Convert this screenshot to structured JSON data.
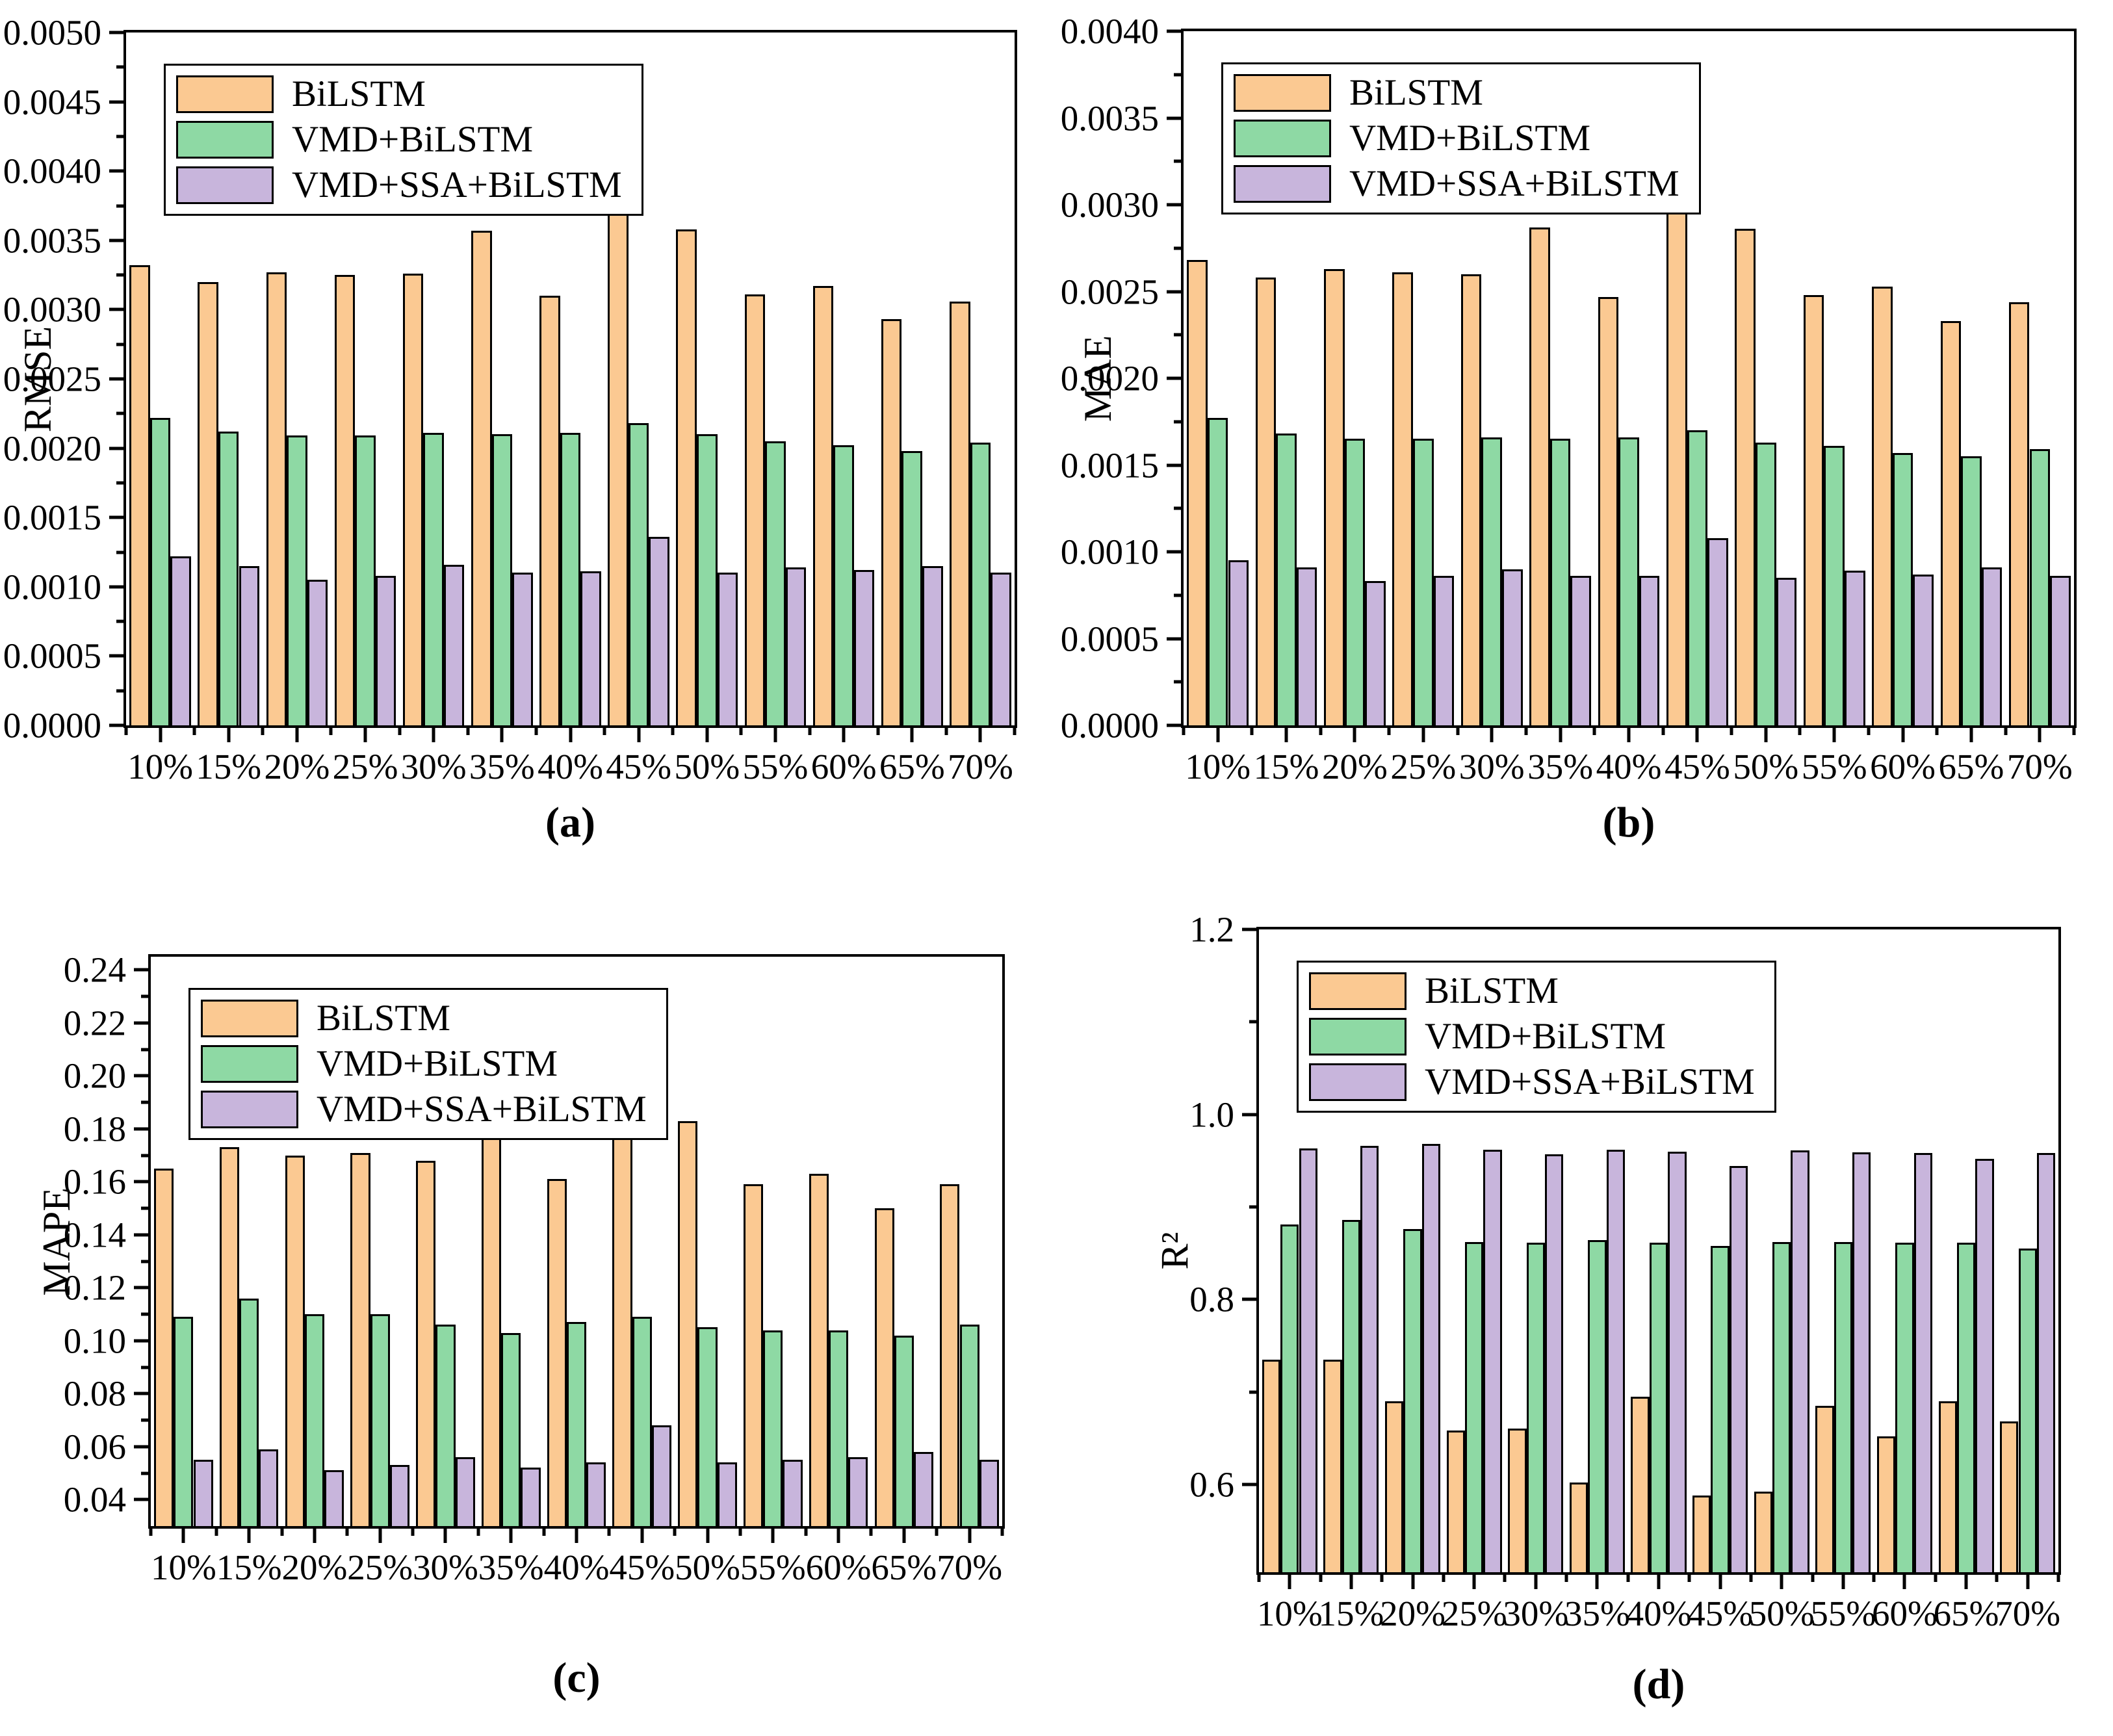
{
  "chart_data": [
    {
      "panel": "a",
      "type": "bar",
      "title": "",
      "caption": "(a)",
      "xlabel": "",
      "ylabel": "RMSE",
      "grid": false,
      "legend_position": "top-left",
      "categories": [
        "10%",
        "15%",
        "20%",
        "25%",
        "30%",
        "35%",
        "40%",
        "45%",
        "50%",
        "55%",
        "60%",
        "65%",
        "70%"
      ],
      "series": [
        {
          "name": "BiLSTM",
          "color": "#fbc992",
          "values": [
            0.00332,
            0.0032,
            0.00327,
            0.00325,
            0.00326,
            0.00357,
            0.0031,
            0.00371,
            0.00358,
            0.00311,
            0.00317,
            0.00293,
            0.00306
          ]
        },
        {
          "name": "VMD+BiLSTM",
          "color": "#8ed9a4",
          "values": [
            0.00222,
            0.00212,
            0.00209,
            0.00209,
            0.00211,
            0.0021,
            0.00211,
            0.00218,
            0.0021,
            0.00205,
            0.00202,
            0.00198,
            0.00204
          ]
        },
        {
          "name": "VMD+SSA+BiLSTM",
          "color": "#c8b5dc",
          "values": [
            0.00122,
            0.00115,
            0.00105,
            0.00108,
            0.00116,
            0.0011,
            0.00111,
            0.00136,
            0.0011,
            0.00114,
            0.00112,
            0.00115,
            0.0011
          ]
        }
      ],
      "ylim": [
        0,
        0.005
      ],
      "ylim_draw": [
        0,
        0.005
      ],
      "yticks": [
        0,
        0.0005,
        0.001,
        0.0015,
        0.002,
        0.0025,
        0.003,
        0.0035,
        0.004,
        0.0045,
        0.005
      ],
      "ytick_labels": [
        "0.0000",
        "0.0005",
        "0.0010",
        "0.0015",
        "0.0020",
        "0.0025",
        "0.0030",
        "0.0035",
        "0.0040",
        "0.0045",
        "0.0050"
      ]
    },
    {
      "panel": "b",
      "type": "bar",
      "title": "",
      "caption": "(b)",
      "xlabel": "",
      "ylabel": "MAE",
      "grid": false,
      "legend_position": "top-left",
      "categories": [
        "10%",
        "15%",
        "20%",
        "25%",
        "30%",
        "35%",
        "40%",
        "45%",
        "50%",
        "55%",
        "60%",
        "65%",
        "70%"
      ],
      "series": [
        {
          "name": "BiLSTM",
          "color": "#fbc992",
          "values": [
            0.00268,
            0.00258,
            0.00263,
            0.00261,
            0.0026,
            0.00287,
            0.00247,
            0.00297,
            0.00286,
            0.00248,
            0.00253,
            0.00233,
            0.00244
          ]
        },
        {
          "name": "VMD+BiLSTM",
          "color": "#8ed9a4",
          "values": [
            0.00177,
            0.00168,
            0.00165,
            0.00165,
            0.00166,
            0.00165,
            0.00166,
            0.0017,
            0.00163,
            0.00161,
            0.00157,
            0.00155,
            0.00159
          ]
        },
        {
          "name": "VMD+SSA+BiLSTM",
          "color": "#c8b5dc",
          "values": [
            0.00095,
            0.00091,
            0.00083,
            0.00086,
            0.0009,
            0.00086,
            0.00086,
            0.00108,
            0.00085,
            0.00089,
            0.00087,
            0.00091,
            0.00086
          ]
        }
      ],
      "ylim": [
        0,
        0.004
      ],
      "ylim_draw": [
        0,
        0.004
      ],
      "yticks": [
        0,
        0.0005,
        0.001,
        0.0015,
        0.002,
        0.0025,
        0.003,
        0.0035,
        0.004
      ],
      "ytick_labels": [
        "0.0000",
        "0.0005",
        "0.0010",
        "0.0015",
        "0.0020",
        "0.0025",
        "0.0030",
        "0.0035",
        "0.0040"
      ]
    },
    {
      "panel": "c",
      "type": "bar",
      "title": "",
      "caption": "(c)",
      "xlabel": "",
      "ylabel": "MAPE",
      "grid": false,
      "legend_position": "top-left",
      "categories": [
        "10%",
        "15%",
        "20%",
        "25%",
        "30%",
        "35%",
        "40%",
        "45%",
        "50%",
        "55%",
        "60%",
        "65%",
        "70%"
      ],
      "series": [
        {
          "name": "BiLSTM",
          "color": "#fbc992",
          "values": [
            0.165,
            0.173,
            0.17,
            0.171,
            0.168,
            0.182,
            0.161,
            0.188,
            0.183,
            0.159,
            0.163,
            0.15,
            0.159
          ]
        },
        {
          "name": "VMD+BiLSTM",
          "color": "#8ed9a4",
          "values": [
            0.109,
            0.116,
            0.11,
            0.11,
            0.106,
            0.103,
            0.107,
            0.109,
            0.105,
            0.104,
            0.104,
            0.102,
            0.106
          ]
        },
        {
          "name": "VMD+SSA+BiLSTM",
          "color": "#c8b5dc",
          "values": [
            0.055,
            0.059,
            0.051,
            0.053,
            0.056,
            0.052,
            0.054,
            0.068,
            0.054,
            0.055,
            0.056,
            0.058,
            0.055
          ]
        }
      ],
      "ylim": [
        0.04,
        0.24
      ],
      "ylim_draw": [
        0.03,
        0.245
      ],
      "yticks": [
        0.04,
        0.06,
        0.08,
        0.1,
        0.12,
        0.14,
        0.16,
        0.18,
        0.2,
        0.22,
        0.24
      ],
      "ytick_labels": [
        "0.04",
        "0.06",
        "0.08",
        "0.10",
        "0.12",
        "0.14",
        "0.16",
        "0.18",
        "0.20",
        "0.22",
        "0.24"
      ]
    },
    {
      "panel": "d",
      "type": "bar",
      "title": "",
      "caption": "(d)",
      "xlabel": "",
      "ylabel": "R²",
      "grid": false,
      "legend_position": "top-left",
      "categories": [
        "10%",
        "15%",
        "20%",
        "25%",
        "30%",
        "35%",
        "40%",
        "45%",
        "50%",
        "55%",
        "60%",
        "65%",
        "70%"
      ],
      "series": [
        {
          "name": "BiLSTM",
          "color": "#fbc992",
          "values": [
            0.735,
            0.735,
            0.69,
            0.658,
            0.66,
            0.602,
            0.695,
            0.588,
            0.592,
            0.685,
            0.652,
            0.69,
            0.668
          ]
        },
        {
          "name": "VMD+BiLSTM",
          "color": "#8ed9a4",
          "values": [
            0.881,
            0.886,
            0.876,
            0.862,
            0.861,
            0.864,
            0.861,
            0.858,
            0.862,
            0.862,
            0.861,
            0.861,
            0.855
          ]
        },
        {
          "name": "VMD+SSA+BiLSTM",
          "color": "#c8b5dc",
          "values": [
            0.963,
            0.966,
            0.968,
            0.962,
            0.957,
            0.962,
            0.96,
            0.944,
            0.961,
            0.959,
            0.958,
            0.952,
            0.958
          ]
        }
      ],
      "ylim": [
        0.6,
        1.2
      ],
      "ylim_draw": [
        0.505,
        1.2
      ],
      "yticks": [
        0.6,
        0.8,
        1.0,
        1.2
      ],
      "ytick_labels": [
        "0.6",
        "0.8",
        "1.0",
        "1.2"
      ]
    }
  ]
}
